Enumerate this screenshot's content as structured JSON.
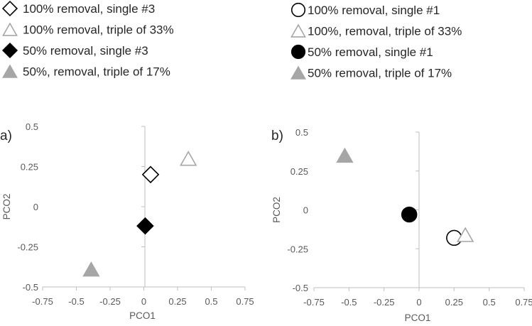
{
  "legends": [
    {
      "entries": [
        {
          "label": "100% removal, single #3",
          "marker": "diamond-open"
        },
        {
          "label": "100% removal, triple of 33%",
          "marker": "triangle-open"
        },
        {
          "label": "50% removal, single #3",
          "marker": "diamond-filled"
        },
        {
          "label": "50%, removal, triple of 17%",
          "marker": "triangle-filled"
        }
      ]
    },
    {
      "entries": [
        {
          "label": "100% removal, single #1",
          "marker": "circle-open"
        },
        {
          "label": "100%, removal, triple of 33%",
          "marker": "triangle-open"
        },
        {
          "label": "50% removal, single #1",
          "marker": "circle-filled"
        },
        {
          "label": "50% removal, triple of 17%",
          "marker": "triangle-filled"
        }
      ]
    }
  ],
  "colors": {
    "black": "#000000",
    "gray": "#a6a6a6",
    "axis": "#bfbfbf"
  },
  "chart_data": [
    {
      "type": "scatter",
      "panel_label": "a)",
      "xlabel": "PCO1",
      "ylabel": "PCO2",
      "xlim": [
        -0.75,
        0.75
      ],
      "ylim": [
        -0.5,
        0.5
      ],
      "xticks": [
        "-0.75",
        "-0.5",
        "-0.25",
        "0",
        "0.25",
        "0.5",
        "0.75"
      ],
      "yticks": [
        "0.5",
        "0.25",
        "0",
        "-0.25",
        "-0.5"
      ],
      "grid": false,
      "series": [
        {
          "name": "100% removal, single #3",
          "marker": "diamond-open",
          "points": [
            [
              0.05,
              0.2
            ]
          ]
        },
        {
          "name": "100% removal, triple of 33%",
          "marker": "triangle-open",
          "points": [
            [
              0.33,
              0.3
            ]
          ]
        },
        {
          "name": "50% removal, single #3",
          "marker": "diamond-filled",
          "points": [
            [
              0.01,
              -0.12
            ]
          ]
        },
        {
          "name": "50%, removal, triple of 17%",
          "marker": "triangle-filled",
          "points": [
            [
              -0.39,
              -0.39
            ]
          ]
        }
      ]
    },
    {
      "type": "scatter",
      "panel_label": "b)",
      "xlabel": "PCO1",
      "ylabel": "PCO2",
      "xlim": [
        -0.75,
        0.75
      ],
      "ylim": [
        -0.5,
        0.5
      ],
      "xticks": [
        "-0.75",
        "-0.5",
        "-0.25",
        "0",
        "0.25",
        "0.5",
        "0.75"
      ],
      "yticks": [
        "0.5",
        "0.25",
        "0",
        "-0.25",
        "-0.5"
      ],
      "grid": false,
      "series": [
        {
          "name": "100% removal, single #1",
          "marker": "circle-open",
          "points": [
            [
              0.25,
              -0.18
            ]
          ]
        },
        {
          "name": "100%, removal, triple of 33%",
          "marker": "triangle-open",
          "points": [
            [
              0.33,
              -0.16
            ]
          ]
        },
        {
          "name": "50% removal, single #1",
          "marker": "circle-filled",
          "points": [
            [
              -0.07,
              -0.03
            ]
          ]
        },
        {
          "name": "50% removal, triple of 17%",
          "marker": "triangle-filled",
          "points": [
            [
              -0.53,
              0.35
            ]
          ]
        }
      ]
    }
  ]
}
